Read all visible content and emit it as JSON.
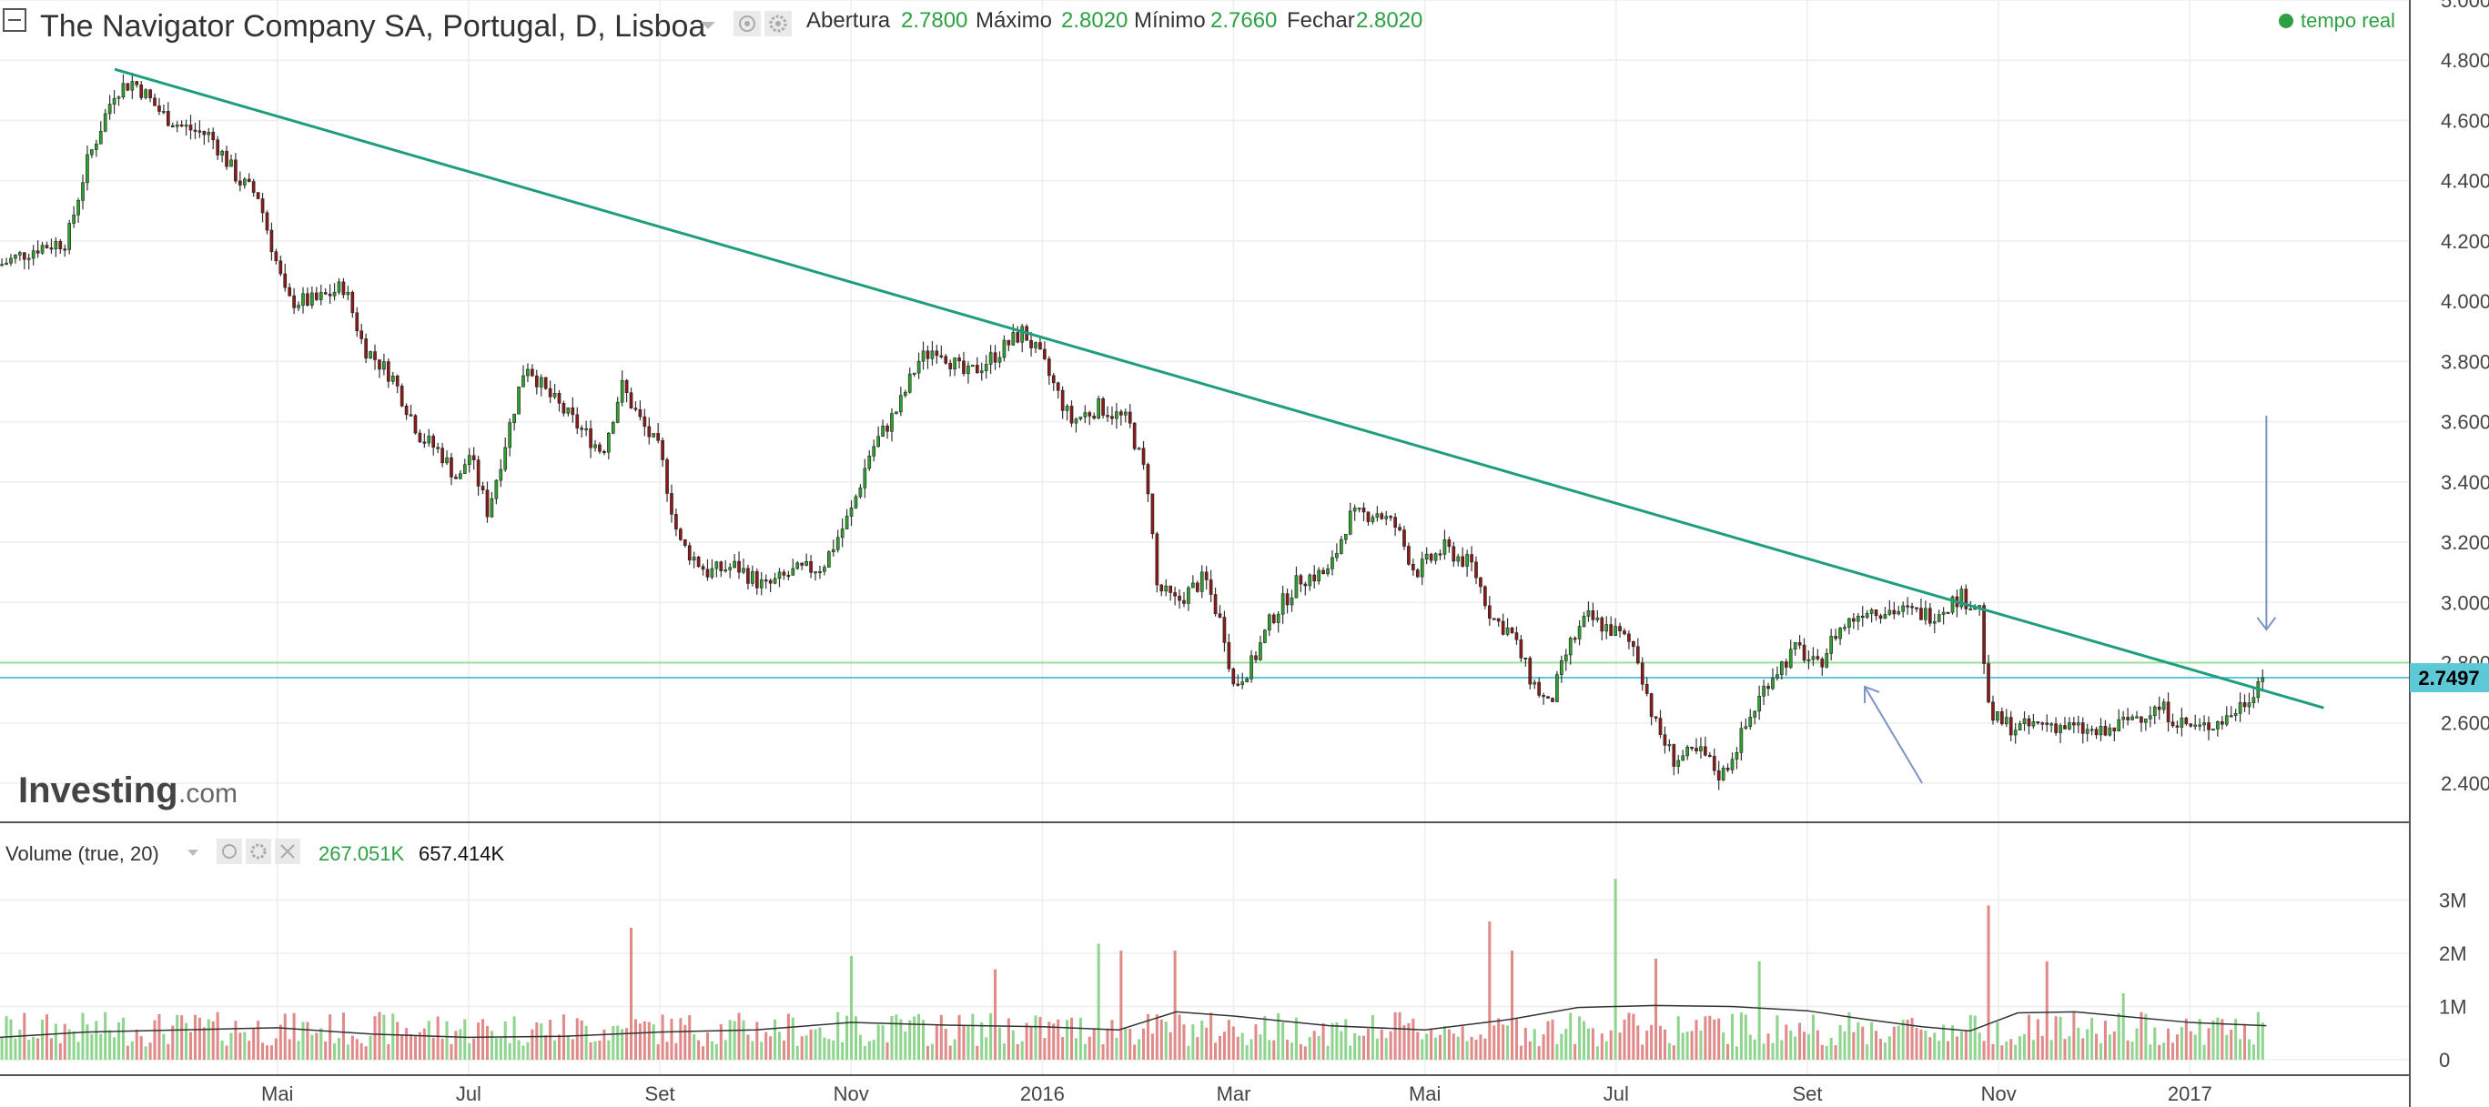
{
  "header": {
    "title": "The Navigator Company SA, Portugal, D, Lisboa",
    "ohlc": [
      {
        "label": "Abertura",
        "value": "2.7800"
      },
      {
        "label": "Máximo",
        "value": "2.8020"
      },
      {
        "label": "Mínimo",
        "value": "2.7660"
      },
      {
        "label": "Fechar",
        "value": "2.8020"
      }
    ],
    "realtime_label": "tempo real"
  },
  "brand": {
    "name": "Investing",
    "domain": ".com"
  },
  "price_badge": "2.7497",
  "volume_panel": {
    "title": "Volume (true, 20)",
    "value1": "267.051K",
    "value2": "657.414K",
    "y_ticks": [
      {
        "label": "3M",
        "value": 3000
      },
      {
        "label": "2M",
        "value": 2000
      },
      {
        "label": "1M",
        "value": 1000
      },
      {
        "label": "0",
        "value": 0
      }
    ]
  },
  "colors": {
    "up": "#2ea02e",
    "down": "#8b1a1a",
    "vol_up": "#8fd48f",
    "vol_down": "#e08a8a",
    "trendline": "#1e9e7e",
    "hline_cyan": "#5ec9d6",
    "hline_green": "#9adf9a",
    "arrow": "#7b92c4",
    "grid": "#eeeeee"
  },
  "chart_data": {
    "type": "candlestick",
    "y_ticks": [
      {
        "label": "5.0000",
        "value": 5.0
      },
      {
        "label": "4.8000",
        "value": 4.8
      },
      {
        "label": "4.6000",
        "value": 4.6
      },
      {
        "label": "4.4000",
        "value": 4.4
      },
      {
        "label": "4.2000",
        "value": 4.2
      },
      {
        "label": "4.0000",
        "value": 4.0
      },
      {
        "label": "3.8000",
        "value": 3.8
      },
      {
        "label": "3.6000",
        "value": 3.6
      },
      {
        "label": "3.4000",
        "value": 3.4
      },
      {
        "label": "3.2000",
        "value": 3.2
      },
      {
        "label": "3.0000",
        "value": 3.0
      },
      {
        "label": "2.8000",
        "value": 2.8
      },
      {
        "label": "2.6000",
        "value": 2.6
      },
      {
        "label": "2.4000",
        "value": 2.4
      }
    ],
    "x_ticks": [
      {
        "label": "Mai",
        "month": 4
      },
      {
        "label": "Jul",
        "month": 6
      },
      {
        "label": "Set",
        "month": 8
      },
      {
        "label": "Nov",
        "month": 10
      },
      {
        "label": "2016",
        "month": 12
      },
      {
        "label": "Mar",
        "month": 14
      },
      {
        "label": "Mai",
        "month": 16
      },
      {
        "label": "Jul",
        "month": 18
      },
      {
        "label": "Set",
        "month": 20
      },
      {
        "label": "Nov",
        "month": 22
      },
      {
        "label": "2017",
        "month": 24
      }
    ],
    "x_range_months": [
      1.1,
      26.3
    ],
    "y_range": [
      2.27,
      5.0
    ],
    "price_path": [
      [
        1.1,
        4.12
      ],
      [
        1.5,
        4.18
      ],
      [
        1.8,
        4.2
      ],
      [
        2.0,
        4.45
      ],
      [
        2.3,
        4.7
      ],
      [
        2.5,
        4.73
      ],
      [
        2.8,
        4.62
      ],
      [
        3.0,
        4.58
      ],
      [
        3.3,
        4.55
      ],
      [
        3.6,
        4.4
      ],
      [
        3.8,
        4.35
      ],
      [
        4.1,
        4.0
      ],
      [
        4.4,
        4.0
      ],
      [
        4.7,
        4.05
      ],
      [
        4.9,
        3.85
      ],
      [
        5.2,
        3.75
      ],
      [
        5.5,
        3.55
      ],
      [
        5.7,
        3.5
      ],
      [
        5.9,
        3.4
      ],
      [
        6.0,
        3.5
      ],
      [
        6.2,
        3.3
      ],
      [
        6.4,
        3.55
      ],
      [
        6.6,
        3.8
      ],
      [
        6.8,
        3.7
      ],
      [
        7.1,
        3.6
      ],
      [
        7.4,
        3.5
      ],
      [
        7.6,
        3.72
      ],
      [
        7.8,
        3.6
      ],
      [
        8.0,
        3.5
      ],
      [
        8.2,
        3.2
      ],
      [
        8.5,
        3.1
      ],
      [
        8.8,
        3.12
      ],
      [
        9.1,
        3.05
      ],
      [
        9.4,
        3.1
      ],
      [
        9.7,
        3.12
      ],
      [
        10.0,
        3.3
      ],
      [
        10.2,
        3.5
      ],
      [
        10.5,
        3.65
      ],
      [
        10.7,
        3.8
      ],
      [
        10.9,
        3.85
      ],
      [
        11.2,
        3.75
      ],
      [
        11.5,
        3.82
      ],
      [
        11.8,
        3.9
      ],
      [
        12.0,
        3.8
      ],
      [
        12.3,
        3.6
      ],
      [
        12.6,
        3.65
      ],
      [
        12.9,
        3.6
      ],
      [
        13.1,
        3.4
      ],
      [
        13.2,
        3.05
      ],
      [
        13.4,
        3.0
      ],
      [
        13.7,
        3.08
      ],
      [
        13.9,
        2.9
      ],
      [
        14.0,
        2.72
      ],
      [
        14.2,
        2.8
      ],
      [
        14.4,
        2.95
      ],
      [
        14.7,
        3.08
      ],
      [
        15.0,
        3.1
      ],
      [
        15.2,
        3.28
      ],
      [
        15.5,
        3.3
      ],
      [
        15.7,
        3.25
      ],
      [
        15.9,
        3.1
      ],
      [
        16.2,
        3.18
      ],
      [
        16.5,
        3.12
      ],
      [
        16.7,
        2.95
      ],
      [
        16.9,
        2.9
      ],
      [
        17.1,
        2.75
      ],
      [
        17.3,
        2.65
      ],
      [
        17.5,
        2.85
      ],
      [
        17.7,
        2.95
      ],
      [
        18.0,
        2.9
      ],
      [
        18.2,
        2.85
      ],
      [
        18.4,
        2.6
      ],
      [
        18.6,
        2.48
      ],
      [
        18.9,
        2.5
      ],
      [
        19.1,
        2.42
      ],
      [
        19.3,
        2.55
      ],
      [
        19.6,
        2.75
      ],
      [
        19.9,
        2.85
      ],
      [
        20.1,
        2.78
      ],
      [
        20.3,
        2.9
      ],
      [
        20.6,
        2.98
      ],
      [
        21.0,
        2.97
      ],
      [
        21.3,
        2.96
      ],
      [
        21.6,
        3.02
      ],
      [
        21.8,
        2.98
      ],
      [
        21.9,
        2.62
      ],
      [
        22.2,
        2.58
      ],
      [
        22.5,
        2.6
      ],
      [
        22.8,
        2.58
      ],
      [
        23.1,
        2.56
      ],
      [
        23.4,
        2.62
      ],
      [
        23.7,
        2.65
      ],
      [
        23.9,
        2.6
      ],
      [
        24.1,
        2.58
      ],
      [
        24.4,
        2.62
      ],
      [
        24.6,
        2.68
      ],
      [
        24.8,
        2.78
      ]
    ],
    "trendline": {
      "from": [
        2.3,
        4.77
      ],
      "to": [
        25.4,
        2.65
      ]
    },
    "horizontal_lines": [
      2.8,
      2.75
    ],
    "volume_avg_path": [
      [
        1.1,
        420
      ],
      [
        2.0,
        520
      ],
      [
        3.0,
        560
      ],
      [
        4.0,
        600
      ],
      [
        5.0,
        480
      ],
      [
        6.0,
        420
      ],
      [
        7.0,
        440
      ],
      [
        8.0,
        520
      ],
      [
        9.0,
        560
      ],
      [
        10.0,
        700
      ],
      [
        11.0,
        650
      ],
      [
        12.0,
        620
      ],
      [
        12.8,
        560
      ],
      [
        13.4,
        900
      ],
      [
        14.0,
        820
      ],
      [
        15.0,
        640
      ],
      [
        16.0,
        560
      ],
      [
        16.9,
        760
      ],
      [
        17.6,
        980
      ],
      [
        18.4,
        1020
      ],
      [
        19.2,
        1000
      ],
      [
        20.0,
        920
      ],
      [
        20.6,
        760
      ],
      [
        21.2,
        620
      ],
      [
        21.7,
        540
      ],
      [
        22.2,
        880
      ],
      [
        22.8,
        900
      ],
      [
        23.4,
        800
      ],
      [
        24.0,
        700
      ],
      [
        24.8,
        640
      ]
    ],
    "volume_spikes": [
      [
        7.7,
        2480
      ],
      [
        10.0,
        1950
      ],
      [
        11.5,
        1700
      ],
      [
        12.6,
        2180
      ],
      [
        12.8,
        2050
      ],
      [
        13.4,
        2050
      ],
      [
        16.7,
        2600
      ],
      [
        16.9,
        2050
      ],
      [
        18.0,
        3400
      ],
      [
        18.4,
        1900
      ],
      [
        19.5,
        1850
      ],
      [
        21.9,
        2900
      ],
      [
        22.5,
        1850
      ],
      [
        23.3,
        1250
      ]
    ]
  }
}
